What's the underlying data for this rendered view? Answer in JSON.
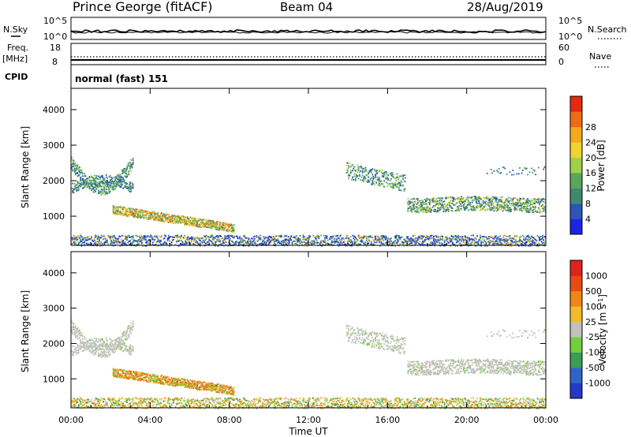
{
  "header": {
    "station": "Prince George (fitACF)",
    "beam": "Beam 04",
    "date": "28/Aug/2019"
  },
  "top_panels": {
    "nsky_label": "N.Sky",
    "nsky_ticks": [
      "10^5",
      "10^0"
    ],
    "nsearch_label": "N.Search",
    "nsearch_ticks": [
      "10^5",
      "10^0"
    ],
    "freq_label": "Freq.",
    "freq_unit": "[MHz]",
    "freq_ticks": [
      "18",
      "8"
    ],
    "nave_label": "Nave",
    "nave_ticks": [
      "60",
      "0"
    ],
    "cpid_label": "CPID",
    "cpid_text": "normal (fast) 151"
  },
  "chart_data": [
    {
      "type": "heatmap",
      "title": "",
      "xlabel": "Time UT",
      "ylabel": "Slant Range [km]",
      "xlim": [
        0,
        24
      ],
      "ylim": [
        180,
        4600
      ],
      "x_ticks": [
        "00:00",
        "04:00",
        "08:00",
        "12:00",
        "16:00",
        "20:00",
        "00:00"
      ],
      "y_ticks": [
        "1000",
        "2000",
        "3000",
        "4000"
      ],
      "colorbar": {
        "label": "Power [dB]",
        "range": [
          0,
          32
        ],
        "ticks": [
          "4",
          "8",
          "12",
          "16",
          "20",
          "24",
          "28"
        ],
        "colors": [
          "#1c24e6",
          "#2a56b5",
          "#3f8a6f",
          "#59a65c",
          "#9fd04a",
          "#f0d231",
          "#f5a81c",
          "#ee6c16",
          "#e42a10"
        ]
      },
      "regions": [
        {
          "t": [
            0.0,
            3.1
          ],
          "r": [
            1650,
            2900
          ],
          "dominant_db": 12
        },
        {
          "t": [
            2.1,
            8.2
          ],
          "r": [
            700,
            1300
          ],
          "dominant_db": 16
        },
        {
          "t": [
            13.9,
            16.9
          ],
          "r": [
            1850,
            2700
          ],
          "dominant_db": 12
        },
        {
          "t": [
            17.0,
            24.0
          ],
          "r": [
            1100,
            1700
          ],
          "dominant_db": 16
        },
        {
          "t": [
            0.0,
            24.0
          ],
          "r": [
            180,
            500
          ],
          "dominant_db": 8
        }
      ]
    },
    {
      "type": "heatmap",
      "title": "",
      "xlabel": "Time UT",
      "ylabel": "Slant Range [km]",
      "xlim": [
        0,
        24
      ],
      "ylim": [
        180,
        4600
      ],
      "x_ticks": [
        "00:00",
        "04:00",
        "08:00",
        "12:00",
        "16:00",
        "20:00",
        "00:00"
      ],
      "y_ticks": [
        "1000",
        "2000",
        "3000",
        "4000"
      ],
      "colorbar": {
        "label": "Velocity [m s^-1]",
        "ticks": [
          "1000",
          "500",
          "100",
          "25",
          "-25",
          "-100",
          "-500",
          "-1000"
        ],
        "colors": [
          "#2339c8",
          "#2f65c9",
          "#3a9e55",
          "#73cf3a",
          "#c2c2bc",
          "#f3bb2a",
          "#ef8616",
          "#e84a14",
          "#e0231a"
        ]
      },
      "regions": [
        {
          "t": [
            0.0,
            3.1
          ],
          "r": [
            1650,
            2900
          ],
          "dominant_velocity": "ground scatter (gray)"
        },
        {
          "t": [
            2.0,
            7.5
          ],
          "r": [
            700,
            1500
          ],
          "dominant_velocity": "-100 to -500 m/s (orange)"
        },
        {
          "t": [
            13.9,
            24.0
          ],
          "r": [
            1100,
            2700
          ],
          "dominant_velocity": "ground scatter (gray)"
        },
        {
          "t": [
            0.0,
            24.0
          ],
          "r": [
            180,
            500
          ],
          "dominant_velocity": "mixed"
        }
      ]
    }
  ]
}
